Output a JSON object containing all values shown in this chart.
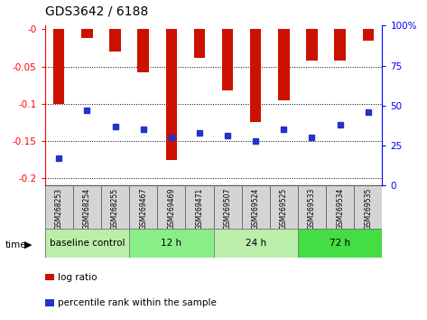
{
  "title": "GDS3642 / 6188",
  "samples": [
    "GSM268253",
    "GSM268254",
    "GSM268255",
    "GSM269467",
    "GSM269469",
    "GSM269471",
    "GSM269507",
    "GSM269524",
    "GSM269525",
    "GSM269533",
    "GSM269534",
    "GSM269535"
  ],
  "log_ratios": [
    -0.1,
    -0.012,
    -0.03,
    -0.058,
    -0.175,
    -0.038,
    -0.082,
    -0.125,
    -0.095,
    -0.042,
    -0.042,
    -0.015
  ],
  "percentile_ranks": [
    17,
    47,
    37,
    35,
    30,
    33,
    31,
    28,
    35,
    30,
    38,
    46
  ],
  "groups": [
    {
      "label": "baseline control",
      "start": 0,
      "end": 3,
      "color": "#bbeeaa"
    },
    {
      "label": "12 h",
      "start": 3,
      "end": 6,
      "color": "#88ee88"
    },
    {
      "label": "24 h",
      "start": 6,
      "end": 9,
      "color": "#bbeeaa"
    },
    {
      "label": "72 h",
      "start": 9,
      "end": 12,
      "color": "#44dd44"
    }
  ],
  "ylim_left": [
    -0.21,
    0.005
  ],
  "ylim_right": [
    0,
    100
  ],
  "left_ticks": [
    0.0,
    -0.05,
    -0.1,
    -0.15,
    -0.2
  ],
  "left_tick_labels": [
    "-0",
    "-0.05",
    "-0.1",
    "-0.15",
    "-0.2"
  ],
  "right_ticks": [
    0,
    25,
    50,
    75,
    100
  ],
  "right_tick_labels": [
    "0",
    "25",
    "50",
    "75",
    "100%"
  ],
  "bar_color": "#cc1100",
  "dot_color": "#2233cc",
  "grid_color": "#000000",
  "bar_width": 0.4,
  "dot_size": 5
}
